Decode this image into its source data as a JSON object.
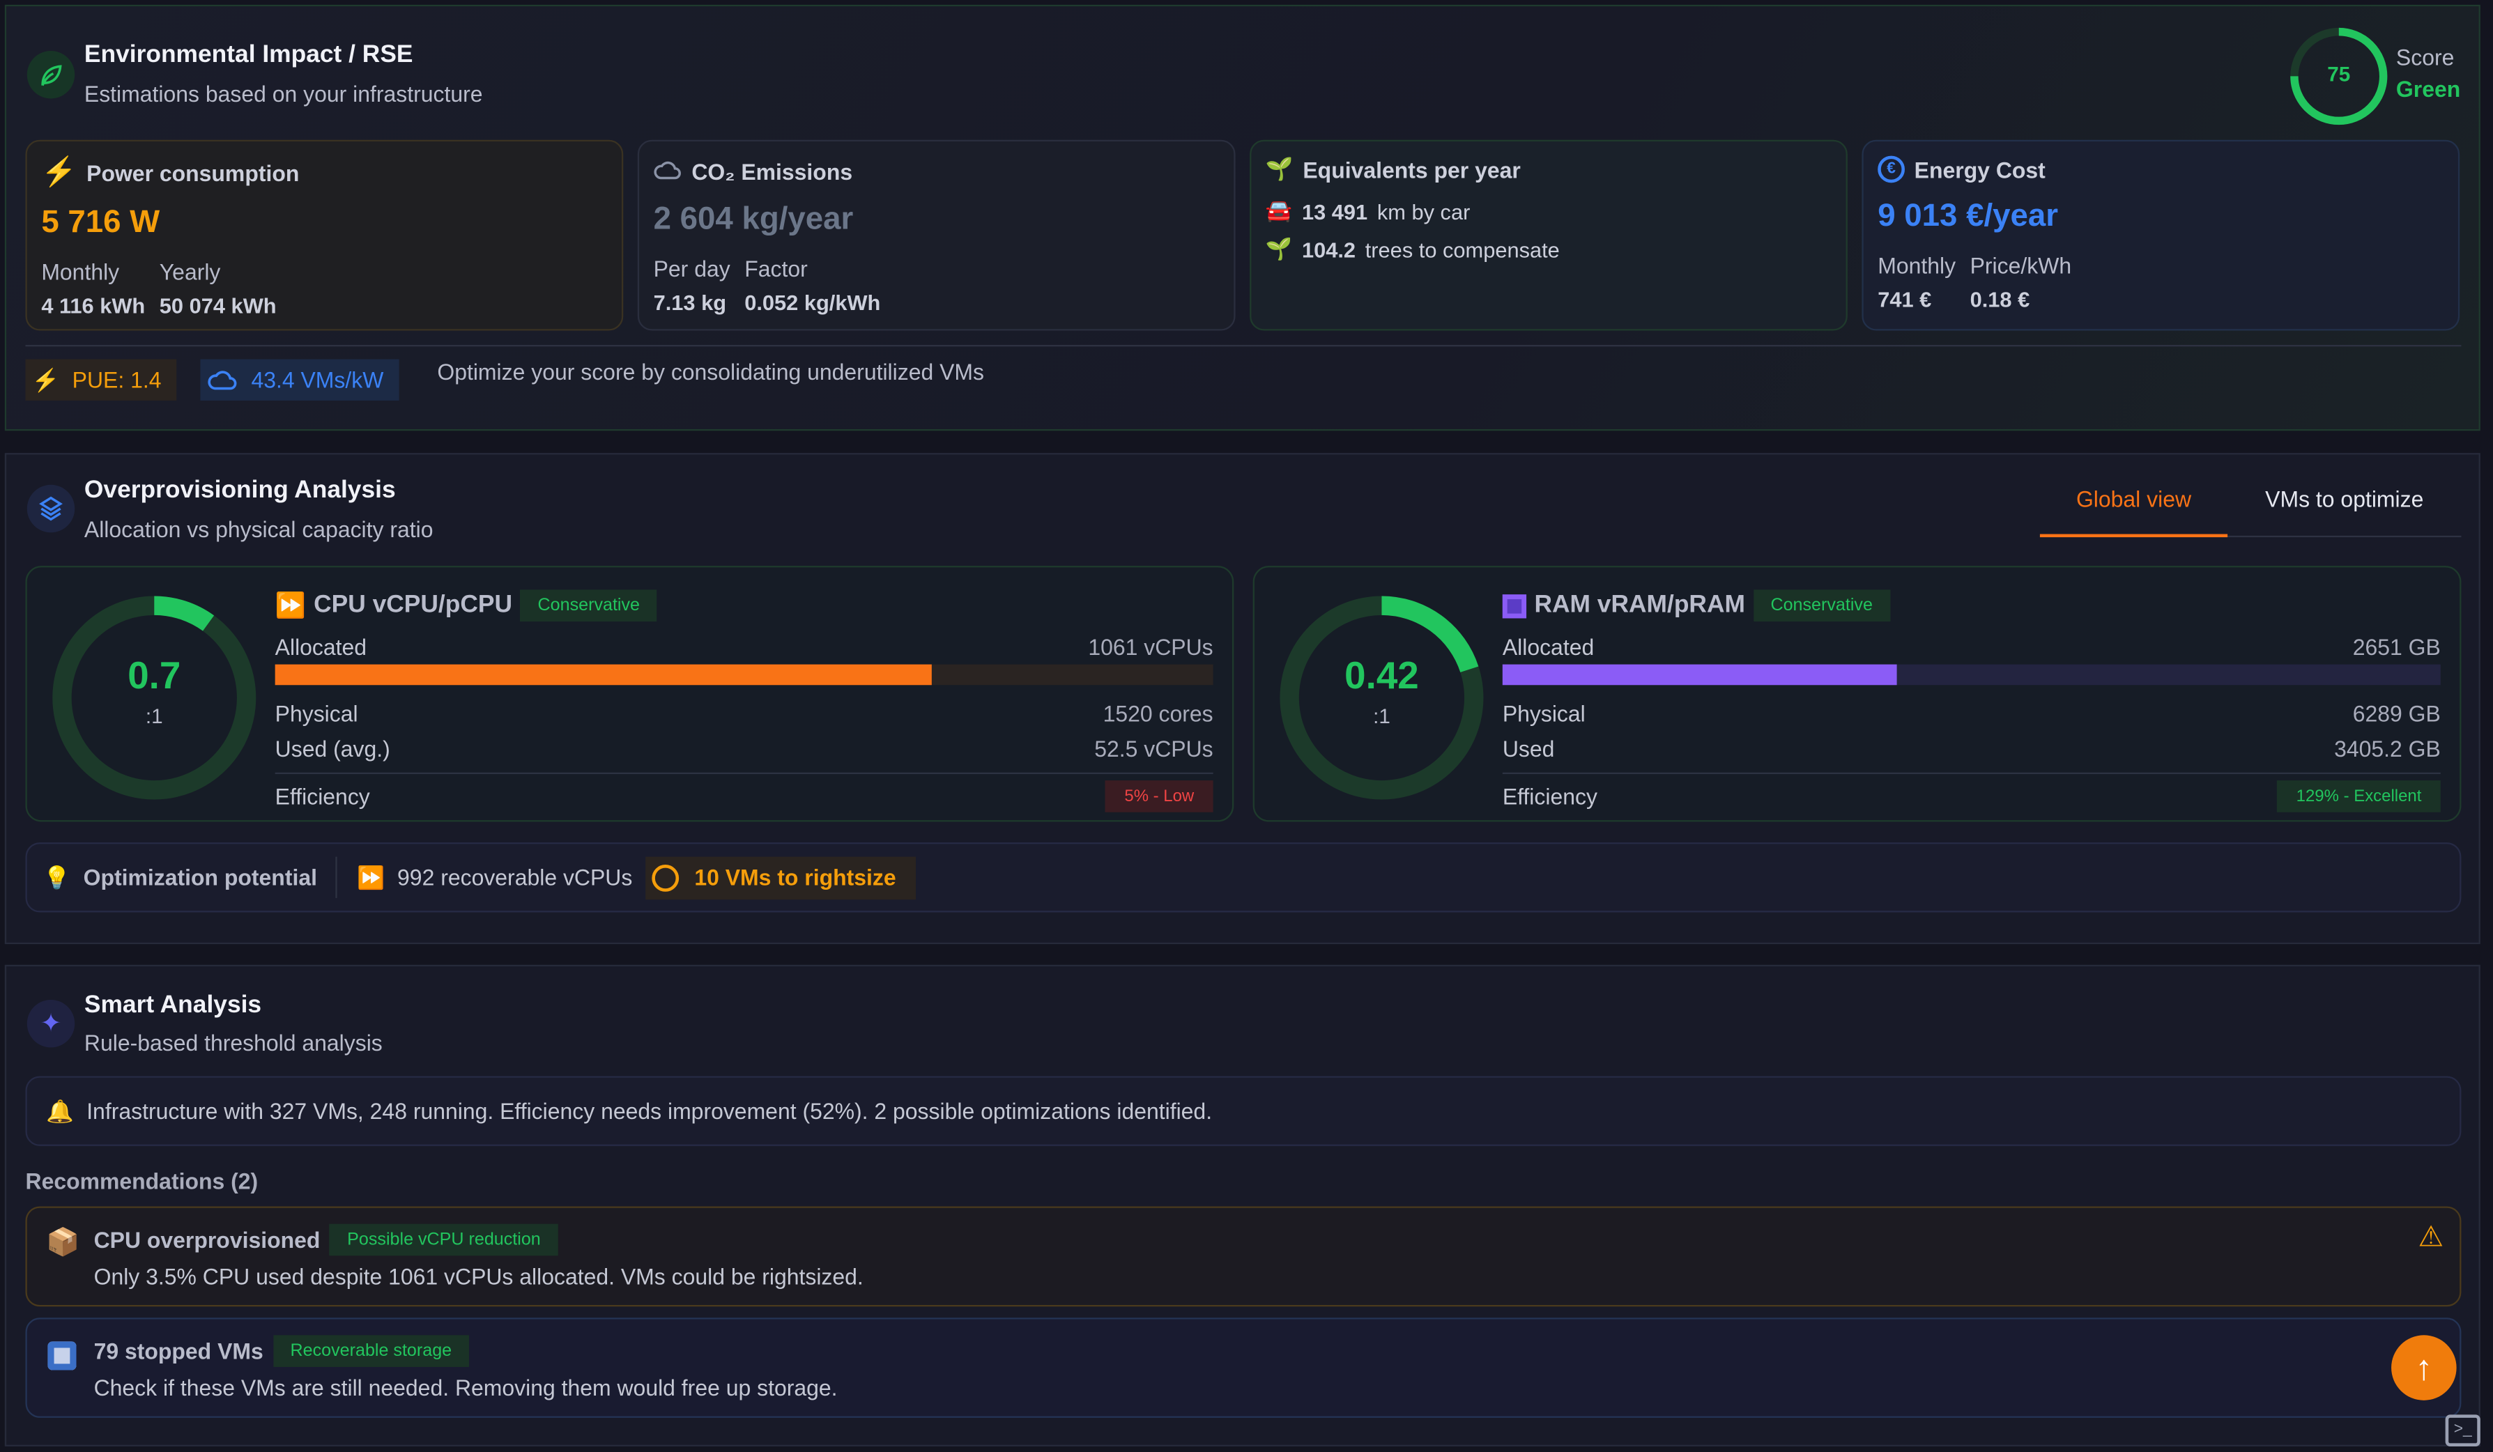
{
  "colors": {
    "green": "#22c55e",
    "orange": "#f97316",
    "amber": "#f59e0b",
    "blue": "#3b82f6",
    "purple": "#8b5cf6",
    "red": "#ef4444"
  },
  "env": {
    "title": "Environmental Impact / RSE",
    "subtitle": "Estimations based on your infrastructure",
    "icon": "leaf-icon",
    "score": {
      "value": "75",
      "fraction": 0.75,
      "label": "Score",
      "grade": "Green"
    },
    "power": {
      "title": "Power consumption",
      "value": "5 716 W",
      "monthly_label": "Monthly",
      "yearly_label": "Yearly",
      "monthly": "4 116 kWh",
      "yearly": "50 074 kWh"
    },
    "co2": {
      "title": "CO₂ Emissions",
      "value": "2 604 kg/year",
      "perday_label": "Per day",
      "factor_label": "Factor",
      "perday": "7.13 kg",
      "factor": "0.052 kg/kWh"
    },
    "equiv": {
      "title": "Equivalents per year",
      "car_value": "13 491",
      "car_label": "km by car",
      "trees_value": "104.2",
      "trees_label": "trees to compensate"
    },
    "cost": {
      "title": "Energy Cost",
      "value": "9 013 €/year",
      "monthly_label": "Monthly",
      "price_label": "Price/kWh",
      "monthly": "741 €",
      "price": "0.18 €"
    },
    "pue": "PUE: 1.4",
    "vms_per_kw": "43.4 VMs/kW",
    "tip": "Optimize your score by consolidating underutilized VMs"
  },
  "over": {
    "title": "Overprovisioning Analysis",
    "subtitle": "Allocation vs physical capacity ratio",
    "tabs": [
      {
        "label": "Global view",
        "active": true
      },
      {
        "label": "VMs to optimize",
        "active": false
      }
    ],
    "cpu": {
      "title": "CPU vCPU/pCPU",
      "badge": "Conservative",
      "ratio": "0.7",
      "ratio_suffix": ":1",
      "gauge_fill": 0.1,
      "allocated_label": "Allocated",
      "allocated": "1061 vCPUs",
      "alloc_fraction": 0.7,
      "physical_label": "Physical",
      "physical": "1520 cores",
      "used_label": "Used (avg.)",
      "used": "52.5 vCPUs",
      "efficiency_label": "Efficiency",
      "efficiency": "5% - Low"
    },
    "ram": {
      "title": "RAM vRAM/pRAM",
      "badge": "Conservative",
      "ratio": "0.42",
      "ratio_suffix": ":1",
      "gauge_fill": 0.2,
      "allocated_label": "Allocated",
      "allocated": "2651 GB",
      "alloc_fraction": 0.42,
      "physical_label": "Physical",
      "physical": "6289 GB",
      "used_label": "Used",
      "used": "3405.2 GB",
      "efficiency_label": "Efficiency",
      "efficiency": "129% - Excellent"
    },
    "opt": {
      "label": "Optimization potential",
      "recoverable": "992 recoverable vCPUs",
      "rightsize": "10 VMs to rightsize"
    }
  },
  "smart": {
    "title": "Smart Analysis",
    "subtitle": "Rule-based threshold analysis",
    "summary": "Infrastructure with 327 VMs, 248 running. Efficiency needs improvement (52%). 2 possible optimizations identified.",
    "rec_header": "Recommendations (2)",
    "recs": [
      {
        "title": "CPU overprovisioned",
        "badge": "Possible vCPU reduction",
        "desc": "Only 3.5% CPU used despite 1061 vCPUs allocated. VMs could be rightsized."
      },
      {
        "title": "79 stopped VMs",
        "badge": "Recoverable storage",
        "desc": "Check if these VMs are still needed. Removing them would free up storage."
      }
    ]
  }
}
